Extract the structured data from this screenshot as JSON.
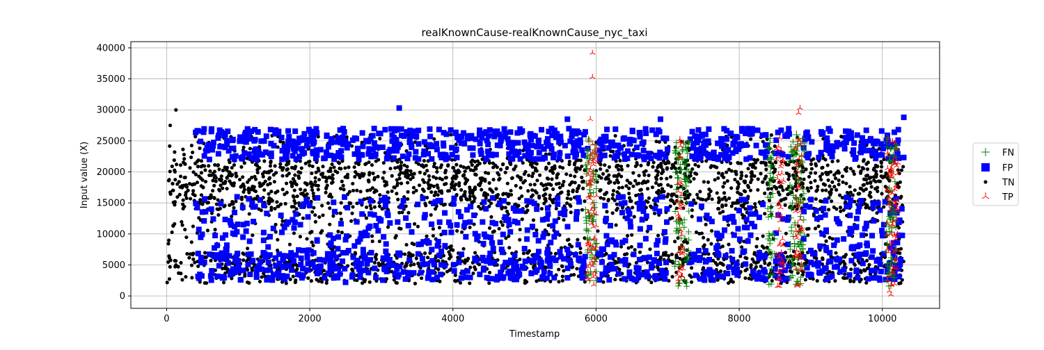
{
  "chart_data": {
    "type": "scatter",
    "title": "realKnownCause-realKnownCause_nyc_taxi",
    "xlabel": "Timestamp",
    "ylabel": "Input value (X)",
    "xlim": [
      -500,
      10800
    ],
    "ylim": [
      -2000,
      41000
    ],
    "xticks": [
      0,
      2000,
      4000,
      6000,
      8000,
      10000
    ],
    "yticks": [
      0,
      5000,
      10000,
      15000,
      20000,
      25000,
      30000,
      35000,
      40000
    ],
    "grid": true,
    "legend_position": "right",
    "series": [
      {
        "name": "FN",
        "marker": "plus",
        "color": "#008000",
        "ranges": [
          [
            5850,
            6010
          ],
          [
            7100,
            7300
          ],
          [
            8400,
            8500
          ],
          [
            8700,
            8920
          ],
          [
            10050,
            10200
          ]
        ],
        "points": [
          [
            5900,
            25000
          ],
          [
            5950,
            12000
          ],
          [
            6000,
            2500
          ],
          [
            7150,
            22000
          ],
          [
            7250,
            24000
          ],
          [
            8450,
            21000
          ],
          [
            8800,
            26000
          ],
          [
            8850,
            2000
          ],
          [
            10100,
            22500
          ],
          [
            10150,
            3000
          ]
        ]
      },
      {
        "name": "FP",
        "marker": "square",
        "color": "#0000ff",
        "ranges": [
          [
            400,
            5900
          ],
          [
            6000,
            7000
          ],
          [
            7300,
            8400
          ],
          [
            8500,
            8700
          ],
          [
            8900,
            10300
          ]
        ],
        "points": [
          [
            3250,
            30300
          ],
          [
            5600,
            28500
          ],
          [
            10300,
            28800
          ],
          [
            6900,
            28500
          ],
          [
            2500,
            2200
          ]
        ]
      },
      {
        "name": "TN",
        "marker": "circle",
        "color": "#000000",
        "ranges": [
          [
            0,
            5850
          ],
          [
            6000,
            10300
          ]
        ],
        "points": [
          [
            130,
            30000
          ],
          [
            50,
            27500
          ],
          [
            7300,
            23500
          ],
          [
            7250,
            2200
          ]
        ]
      },
      {
        "name": "TP",
        "marker": "tri_up",
        "color": "#ff0000",
        "ranges": [
          [
            5880,
            6020
          ],
          [
            7140,
            7220
          ],
          [
            8520,
            8620
          ],
          [
            8780,
            8880
          ],
          [
            10060,
            10220
          ]
        ],
        "points": [
          [
            5950,
            39200
          ],
          [
            5950,
            35300
          ],
          [
            8850,
            30300
          ],
          [
            8830,
            29500
          ],
          [
            5920,
            28500
          ],
          [
            10120,
            200
          ],
          [
            10100,
            800
          ],
          [
            7180,
            22500
          ],
          [
            8560,
            1600
          ]
        ]
      }
    ]
  }
}
